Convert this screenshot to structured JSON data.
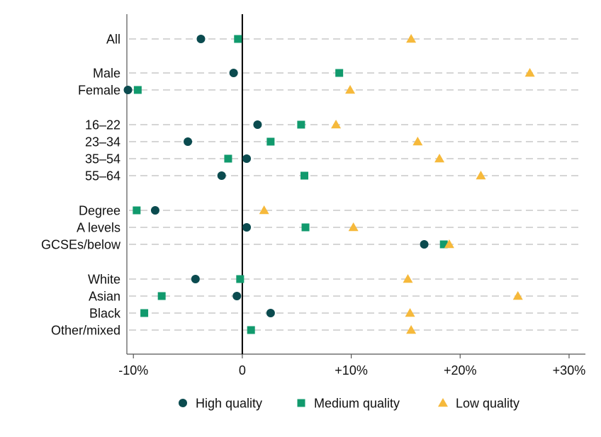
{
  "chart_data": {
    "type": "scatter",
    "categories": [
      "All",
      "Male",
      "Female",
      "16–22",
      "23–34",
      "35–54",
      "55–64",
      "Degree",
      "A levels",
      "GCSEs/below",
      "White",
      "Asian",
      "Black",
      "Other/mixed"
    ],
    "series": [
      {
        "name": "High quality",
        "color": "#0b4b4f",
        "marker": "circle",
        "values": [
          -3.8,
          -0.8,
          -10.5,
          1.4,
          -5.0,
          0.4,
          -1.9,
          -8.0,
          0.4,
          16.7,
          -4.3,
          -0.5,
          2.6,
          null
        ]
      },
      {
        "name": "Medium quality",
        "color": "#119a6d",
        "marker": "square",
        "values": [
          -0.4,
          8.9,
          -9.6,
          5.4,
          2.6,
          -1.3,
          5.7,
          -9.7,
          5.8,
          18.5,
          -0.2,
          -7.4,
          -9.0,
          0.8
        ]
      },
      {
        "name": "Low quality",
        "color": "#f6b93b",
        "marker": "triangle",
        "values": [
          15.5,
          26.4,
          9.9,
          8.6,
          16.1,
          18.1,
          21.9,
          2.0,
          10.2,
          19.0,
          15.2,
          25.3,
          15.4,
          15.5
        ]
      }
    ],
    "x_ticks": [
      "-10%",
      "0",
      "+10%",
      "+20%",
      "+30%"
    ],
    "x_tick_values": [
      -10,
      0,
      10,
      20,
      30
    ],
    "xlim": [
      -10.6,
      31.5
    ],
    "grid": "dashed horizontal",
    "legend_position": "bottom"
  }
}
